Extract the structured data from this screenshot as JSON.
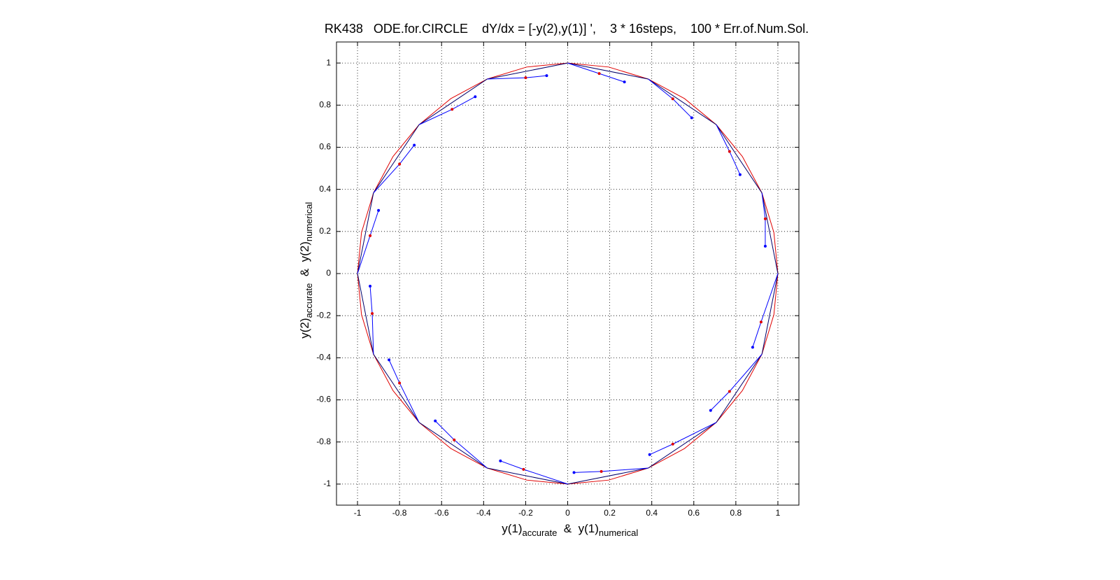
{
  "chart_data": {
    "type": "line",
    "title": "RK438   ODE.for.CIRCLE    dY/dx = [-y(2),y(1)] ',    3 * 16steps,    100 * Err.of.Num.Sol.",
    "xlabel": [
      "y(1)",
      "accurate",
      "  &  y(1)",
      "numerical"
    ],
    "ylabel": [
      "y(2)",
      "accurate",
      "  &  y(2)",
      "numerical"
    ],
    "xlim": [
      -1.1,
      1.1
    ],
    "ylim": [
      -1.1,
      1.1
    ],
    "xticks": [
      -1,
      -0.8,
      -0.6,
      -0.4,
      -0.2,
      0,
      0.2,
      0.4,
      0.6,
      0.8,
      1
    ],
    "yticks": [
      -1,
      -0.8,
      -0.6,
      -0.4,
      -0.2,
      0,
      0.2,
      0.4,
      0.6,
      0.8,
      1
    ],
    "grid": true,
    "series": [
      {
        "color": "#e00000",
        "mode": "line",
        "x": [
          1,
          0.981,
          0.924,
          0.831,
          0.707,
          0.556,
          0.383,
          0.195,
          0,
          -0.195,
          -0.383,
          -0.556,
          -0.707,
          -0.831,
          -0.924,
          -0.981,
          -1,
          -0.981,
          -0.924,
          -0.831,
          -0.707,
          -0.556,
          -0.383,
          -0.195,
          0,
          0.195,
          0.383,
          0.556,
          0.707,
          0.831,
          0.924,
          0.981,
          1
        ],
        "values": [
          0,
          0.195,
          0.383,
          0.556,
          0.707,
          0.831,
          0.924,
          0.981,
          1,
          0.981,
          0.924,
          0.831,
          0.707,
          0.556,
          0.383,
          0.195,
          0,
          -0.195,
          -0.383,
          -0.556,
          -0.707,
          -0.831,
          -0.924,
          -0.981,
          -1,
          -0.981,
          -0.924,
          -0.831,
          -0.707,
          -0.556,
          -0.383,
          -0.195,
          0
        ]
      },
      {
        "color": "#00006a",
        "mode": "line",
        "x": [
          1,
          0.924,
          0.707,
          0.383,
          0,
          -0.383,
          -0.707,
          -0.924,
          -1,
          -0.924,
          -0.707,
          -0.383,
          0,
          0.383,
          0.707,
          0.924,
          1
        ],
        "values": [
          0,
          0.383,
          0.707,
          0.924,
          1,
          0.924,
          0.707,
          0.383,
          0,
          -0.383,
          -0.707,
          -0.924,
          -1,
          -0.924,
          -0.707,
          -0.383,
          0
        ]
      },
      {
        "color": "#0000ff",
        "mode": "line",
        "x": [
          0,
          0.15,
          0.27,
          null,
          0.383,
          0.5,
          0.59,
          null,
          0.707,
          0.77,
          0.82,
          null,
          0.924,
          0.94,
          0.94,
          null,
          1,
          0.92,
          0.88,
          null,
          0.924,
          0.77,
          0.68,
          null,
          0.707,
          0.5,
          0.39,
          null,
          0.383,
          0.16,
          0.03,
          null,
          0,
          -0.21,
          -0.32,
          null,
          -0.383,
          -0.54,
          -0.63,
          null,
          -0.707,
          -0.8,
          -0.85,
          null,
          -0.924,
          -0.93,
          -0.94,
          null,
          -1,
          -0.94,
          -0.9,
          null,
          -0.924,
          -0.8,
          -0.73,
          null,
          -0.707,
          -0.55,
          -0.44,
          null,
          -0.383,
          -0.2,
          -0.1
        ],
        "values": [
          1,
          0.95,
          0.91,
          null,
          0.924,
          0.83,
          0.74,
          null,
          0.707,
          0.58,
          0.47,
          null,
          0.383,
          0.26,
          0.13,
          null,
          0,
          -0.23,
          -0.35,
          null,
          -0.383,
          -0.56,
          -0.65,
          null,
          -0.707,
          -0.81,
          -0.86,
          null,
          -0.924,
          -0.94,
          -0.945,
          null,
          -1,
          -0.93,
          -0.89,
          null,
          -0.924,
          -0.79,
          -0.7,
          null,
          -0.707,
          -0.52,
          -0.41,
          null,
          -0.383,
          -0.19,
          -0.06,
          null,
          0,
          0.18,
          0.3,
          null,
          0.383,
          0.52,
          0.61,
          null,
          0.707,
          0.78,
          0.84,
          null,
          0.924,
          0.93,
          0.94
        ]
      },
      {
        "color": "#e00000",
        "mode": "markers",
        "x": [
          0.15,
          0.5,
          0.77,
          0.94,
          0.92,
          0.77,
          0.5,
          0.16,
          -0.21,
          -0.54,
          -0.8,
          -0.93,
          -0.94,
          -0.8,
          -0.55,
          -0.2
        ],
        "values": [
          0.95,
          0.83,
          0.58,
          0.26,
          -0.23,
          -0.56,
          -0.81,
          -0.94,
          -0.93,
          -0.79,
          -0.52,
          -0.19,
          0.18,
          0.52,
          0.78,
          0.93
        ]
      },
      {
        "color": "#0000ff",
        "mode": "markers",
        "x": [
          0.27,
          0.59,
          0.82,
          0.94,
          0.88,
          0.68,
          0.39,
          0.03,
          -0.32,
          -0.63,
          -0.85,
          -0.94,
          -0.9,
          -0.73,
          -0.44,
          -0.1
        ],
        "values": [
          0.91,
          0.74,
          0.47,
          0.13,
          -0.35,
          -0.65,
          -0.86,
          -0.945,
          -0.89,
          -0.7,
          -0.41,
          -0.06,
          0.3,
          0.61,
          0.84,
          0.94
        ]
      }
    ]
  }
}
